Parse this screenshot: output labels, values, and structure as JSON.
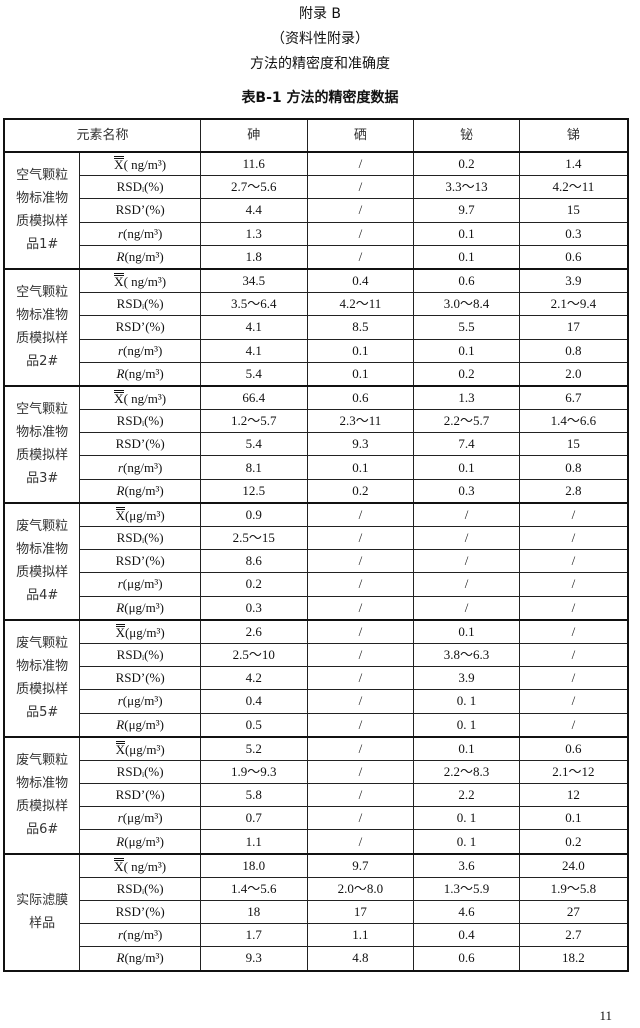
{
  "header": {
    "appendix": "附录 B",
    "appendix_type": "（资料性附录）",
    "section_title": "方法的精密度和准确度",
    "table_title": "表B-1   方法的精密度数据"
  },
  "table": {
    "columns": [
      "元素名称",
      "砷",
      "硒",
      "铋",
      "锑"
    ],
    "groups": [
      {
        "name": "空气颗粒物标准物质模拟样品1#",
        "rows": [
          {
            "sym": "X",
            "rest": "( ng/m³)",
            "style": "bar",
            "values": [
              "11.6",
              "/",
              "0.2",
              "1.4"
            ]
          },
          {
            "sym": "RSDᵢ",
            "rest": "(%)",
            "style": "plain",
            "values": [
              "2.7～5.6",
              "/",
              "3.3～13",
              "4.2～11"
            ]
          },
          {
            "sym": "RSD’",
            "rest": "(%)",
            "style": "plain",
            "values": [
              "4.4",
              "/",
              "9.7",
              "15"
            ]
          },
          {
            "sym": "r",
            "rest": "(ng/m³)",
            "style": "italic",
            "values": [
              "1.3",
              "/",
              "0.1",
              "0.3"
            ]
          },
          {
            "sym": "R",
            "rest": "(ng/m³)",
            "style": "italic",
            "values": [
              "1.8",
              "/",
              "0.1",
              "0.6"
            ]
          }
        ]
      },
      {
        "name": "空气颗粒物标准物质模拟样品2#",
        "rows": [
          {
            "sym": "X",
            "rest": "( ng/m³)",
            "style": "bar",
            "values": [
              "34.5",
              "0.4",
              "0.6",
              "3.9"
            ]
          },
          {
            "sym": "RSDᵢ",
            "rest": "(%)",
            "style": "plain",
            "values": [
              "3.5～6.4",
              "4.2～11",
              "3.0～8.4",
              "2.1～9.4"
            ]
          },
          {
            "sym": "RSD’",
            "rest": "(%)",
            "style": "plain",
            "values": [
              "4.1",
              "8.5",
              "5.5",
              "17"
            ]
          },
          {
            "sym": "r",
            "rest": "(ng/m³)",
            "style": "italic",
            "values": [
              "4.1",
              "0.1",
              "0.1",
              "0.8"
            ]
          },
          {
            "sym": "R",
            "rest": "(ng/m³)",
            "style": "italic",
            "values": [
              "5.4",
              "0.1",
              "0.2",
              "2.0"
            ]
          }
        ]
      },
      {
        "name": "空气颗粒物标准物质模拟样品3#",
        "rows": [
          {
            "sym": "X",
            "rest": "( ng/m³)",
            "style": "bar",
            "values": [
              "66.4",
              "0.6",
              "1.3",
              "6.7"
            ]
          },
          {
            "sym": "RSDᵢ",
            "rest": "(%)",
            "style": "plain",
            "values": [
              "1.2～5.7",
              "2.3～11",
              "2.2～5.7",
              "1.4～6.6"
            ]
          },
          {
            "sym": "RSD’",
            "rest": "(%)",
            "style": "plain",
            "values": [
              "5.4",
              "9.3",
              "7.4",
              "15"
            ]
          },
          {
            "sym": "r",
            "rest": "(ng/m³)",
            "style": "italic",
            "values": [
              "8.1",
              "0.1",
              "0.1",
              "0.8"
            ]
          },
          {
            "sym": "R",
            "rest": "(ng/m³)",
            "style": "italic",
            "values": [
              "12.5",
              "0.2",
              "0.3",
              "2.8"
            ]
          }
        ]
      },
      {
        "name": "废气颗粒物标准物质模拟样品4#",
        "rows": [
          {
            "sym": "X",
            "rest": "(μg/m³)",
            "style": "bar",
            "values": [
              "0.9",
              "/",
              "/",
              "/"
            ]
          },
          {
            "sym": "RSDᵢ",
            "rest": "(%)",
            "style": "plain",
            "values": [
              "2.5～15",
              "/",
              "/",
              "/"
            ]
          },
          {
            "sym": "RSD’",
            "rest": "(%)",
            "style": "plain",
            "values": [
              "8.6",
              "/",
              "/",
              "/"
            ]
          },
          {
            "sym": "r",
            "rest": "(μg/m³)",
            "style": "italic",
            "values": [
              "0.2",
              "/",
              "/",
              "/"
            ]
          },
          {
            "sym": "R",
            "rest": "(μg/m³)",
            "style": "italic",
            "values": [
              "0.3",
              "/",
              "/",
              "/"
            ]
          }
        ]
      },
      {
        "name": "废气颗粒物标准物质模拟样品5#",
        "rows": [
          {
            "sym": "X",
            "rest": "(μg/m³)",
            "style": "bar",
            "values": [
              "2.6",
              "/",
              "0.1",
              "/"
            ]
          },
          {
            "sym": "RSDᵢ",
            "rest": "(%)",
            "style": "plain",
            "values": [
              "2.5～10",
              "/",
              "3.8～6.3",
              "/"
            ]
          },
          {
            "sym": "RSD’",
            "rest": "(%)",
            "style": "plain",
            "values": [
              "4.2",
              "/",
              "3.9",
              "/"
            ]
          },
          {
            "sym": "r",
            "rest": "(μg/m³)",
            "style": "italic",
            "values": [
              "0.4",
              "/",
              "0. 1",
              "/"
            ]
          },
          {
            "sym": "R",
            "rest": "(μg/m³)",
            "style": "italic",
            "values": [
              "0.5",
              "/",
              "0. 1",
              "/"
            ]
          }
        ]
      },
      {
        "name": "废气颗粒物标准物质模拟样品6#",
        "rows": [
          {
            "sym": "X",
            "rest": "(μg/m³)",
            "style": "bar",
            "values": [
              "5.2",
              "/",
              "0.1",
              "0.6"
            ]
          },
          {
            "sym": "RSDᵢ",
            "rest": "(%)",
            "style": "plain",
            "values": [
              "1.9～9.3",
              "/",
              "2.2～8.3",
              "2.1～12"
            ]
          },
          {
            "sym": "RSD’",
            "rest": "(%)",
            "style": "plain",
            "values": [
              "5.8",
              "/",
              "2.2",
              "12"
            ]
          },
          {
            "sym": "r",
            "rest": "(μg/m³)",
            "style": "italic",
            "values": [
              "0.7",
              "/",
              "0. 1",
              "0.1"
            ]
          },
          {
            "sym": "R",
            "rest": "(μg/m³)",
            "style": "italic",
            "values": [
              "1.1",
              "/",
              "0. 1",
              "0.2"
            ]
          }
        ]
      },
      {
        "name": "实际滤膜样品",
        "rows": [
          {
            "sym": "X",
            "rest": "( ng/m³)",
            "style": "bar",
            "values": [
              "18.0",
              "9.7",
              "3.6",
              "24.0"
            ]
          },
          {
            "sym": "RSDᵢ",
            "rest": "(%)",
            "style": "plain",
            "values": [
              "1.4～5.6",
              "2.0～8.0",
              "1.3～5.9",
              "1.9～5.8"
            ]
          },
          {
            "sym": "RSD’",
            "rest": "(%)",
            "style": "plain",
            "values": [
              "18",
              "17",
              "4.6",
              "27"
            ]
          },
          {
            "sym": "r",
            "rest": "(ng/m³)",
            "style": "italic",
            "values": [
              "1.7",
              "1.1",
              "0.4",
              "2.7"
            ]
          },
          {
            "sym": "R",
            "rest": "(ng/m³)",
            "style": "italic",
            "values": [
              "9.3",
              "4.8",
              "0.6",
              "18.2"
            ]
          }
        ]
      }
    ]
  },
  "footer": {
    "page_number": "11"
  }
}
